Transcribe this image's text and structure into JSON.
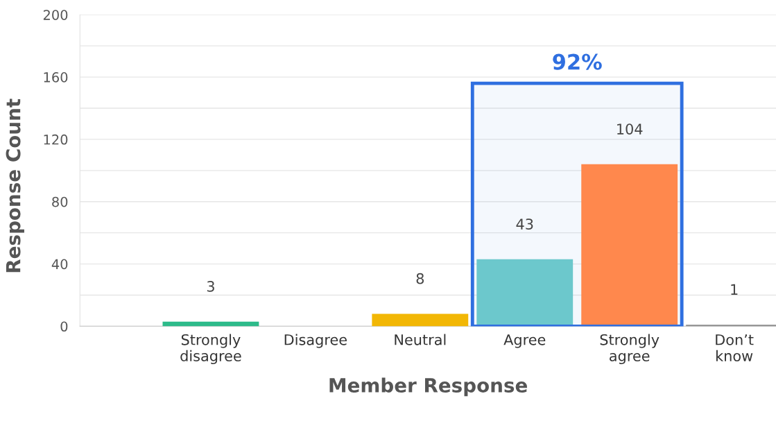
{
  "chart_data": {
    "type": "bar",
    "xlabel": "Member Response",
    "ylabel": "Response Count",
    "categories": [
      "Strongly\ndisagree",
      "Disagree",
      "Neutral",
      "Agree",
      "Strongly\nagree",
      "Don’t\nknow"
    ],
    "values": [
      3,
      0,
      8,
      43,
      104,
      1
    ],
    "colors": [
      "#2dbb8a",
      "#cccccc",
      "#f2b705",
      "#6cc8cc",
      "#ff884d",
      "#8e8e8e"
    ],
    "value_labels": [
      "3",
      null,
      "8",
      "43",
      "104",
      "1"
    ],
    "ylim": [
      0,
      200
    ],
    "yticks": [
      0,
      {
        "value": 20,
        "label": null
      },
      40,
      {
        "value": 60,
        "label": null
      },
      80,
      {
        "value": 100,
        "label": null
      },
      120,
      {
        "value": 140,
        "label": null
      },
      160,
      {
        "value": 180,
        "label": null
      },
      200
    ],
    "grid": "y",
    "bands": [
      {
        "axis": "x",
        "from": "Agree",
        "to": "Strongly\nagree",
        "label": "92%",
        "color": "#2f6fe0"
      }
    ]
  }
}
